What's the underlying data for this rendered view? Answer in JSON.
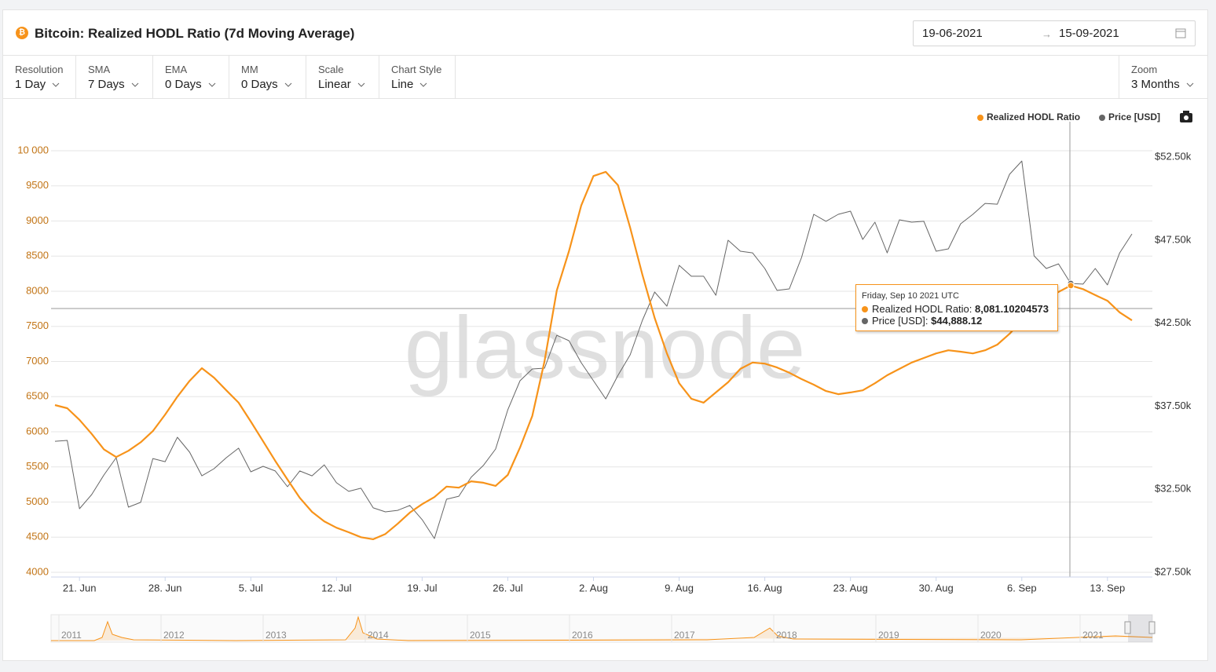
{
  "header": {
    "title": "Bitcoin: Realized HODL Ratio (7d Moving Average)",
    "date_from": "19-06-2021",
    "date_to": "15-09-2021"
  },
  "controls": [
    {
      "label": "Resolution",
      "value": "1 Day"
    },
    {
      "label": "SMA",
      "value": "7 Days"
    },
    {
      "label": "EMA",
      "value": "0 Days"
    },
    {
      "label": "MM",
      "value": "0 Days"
    },
    {
      "label": "Scale",
      "value": "Linear"
    },
    {
      "label": "Chart Style",
      "value": "Line"
    }
  ],
  "zoom": {
    "label": "Zoom",
    "value": "3 Months"
  },
  "tooltip": {
    "title": "Friday, Sep 10 2021 UTC",
    "items": [
      {
        "label": "Realized HODL Ratio:",
        "value": "8,081.10204573"
      },
      {
        "label": "Price [USD]:",
        "value": "$44,888.12"
      }
    ]
  },
  "navigator": {
    "labels": [
      "2011",
      "2012",
      "2013",
      "2014",
      "2015",
      "2016",
      "2017",
      "2018",
      "2019",
      "2020",
      "2021"
    ]
  },
  "chart_data": {
    "type": "line",
    "watermark": "glassnode",
    "grid": true,
    "categories": [
      null,
      null,
      "21. Jun",
      null,
      null,
      null,
      null,
      null,
      null,
      "28. Jun",
      null,
      null,
      null,
      null,
      null,
      null,
      "5. Jul",
      null,
      null,
      null,
      null,
      null,
      null,
      "12. Jul",
      null,
      null,
      null,
      null,
      null,
      null,
      "19. Jul",
      null,
      null,
      null,
      null,
      null,
      null,
      "26. Jul",
      null,
      null,
      null,
      null,
      null,
      null,
      "2. Aug",
      null,
      null,
      null,
      null,
      null,
      null,
      "9. Aug",
      null,
      null,
      null,
      null,
      null,
      null,
      "16. Aug",
      null,
      null,
      null,
      null,
      null,
      null,
      "23. Aug",
      null,
      null,
      null,
      null,
      null,
      null,
      "30. Aug",
      null,
      null,
      null,
      null,
      null,
      null,
      "6. Sep",
      null,
      null,
      null,
      null,
      null,
      null,
      "13. Sep",
      null,
      null
    ],
    "ylim": [
      3933,
      10447
    ],
    "yticks": [
      4000,
      4500,
      5000,
      5500,
      6000,
      6500,
      7000,
      7500,
      8000,
      8500,
      9000,
      9500,
      {
        "value": 10000,
        "label": "10 000"
      }
    ],
    "y2lim": [
      27216,
      54770
    ],
    "y2ticks": [
      {
        "value": 27500,
        "label": "$27.50k"
      },
      {
        "value": 32500,
        "label": "$32.50k"
      },
      {
        "value": 37500,
        "label": "$37.50k"
      },
      {
        "value": 42500,
        "label": "$42.50k"
      },
      {
        "value": 47500,
        "label": "$47.50k"
      },
      {
        "value": 52500,
        "label": "$52.50k"
      }
    ],
    "series": [
      {
        "name": "Realized HODL Ratio",
        "color": "#f7931a",
        "values": [
          6380,
          6335,
          6170,
          5970,
          5750,
          5640,
          5730,
          5850,
          6010,
          6245,
          6500,
          6725,
          6905,
          6770,
          6590,
          6415,
          6145,
          5865,
          5585,
          5320,
          5060,
          4860,
          4725,
          4635,
          4570,
          4500,
          4470,
          4545,
          4690,
          4850,
          4970,
          5070,
          5220,
          5205,
          5295,
          5275,
          5230,
          5385,
          5775,
          6225,
          7005,
          8010,
          8570,
          9220,
          9640,
          9700,
          9510,
          8905,
          8235,
          7620,
          7115,
          6690,
          6470,
          6415,
          6560,
          6705,
          6895,
          6985,
          6970,
          6915,
          6840,
          6750,
          6670,
          6580,
          6535,
          6560,
          6590,
          6690,
          6805,
          6895,
          6985,
          7050,
          7115,
          7160,
          7140,
          7115,
          7160,
          7240,
          7395,
          7585,
          7755,
          7900,
          7990,
          8081.10204573,
          8030,
          7945,
          7865,
          7700,
          7585
        ]
      },
      {
        "name": "Price [USD]",
        "color": "#666666",
        "axis": "y2",
        "values": [
          35390,
          35440,
          31330,
          32180,
          33360,
          34400,
          31420,
          31710,
          34350,
          34160,
          35630,
          34730,
          33310,
          33740,
          34400,
          34970,
          33550,
          33880,
          33600,
          32650,
          33600,
          33310,
          33970,
          32890,
          32370,
          32560,
          31380,
          31140,
          31230,
          31520,
          30670,
          29530,
          31900,
          32080,
          33220,
          33930,
          34920,
          37280,
          39030,
          39740,
          39790,
          41770,
          41440,
          40120,
          39030,
          37940,
          39360,
          40590,
          42670,
          44370,
          43520,
          45980,
          45320,
          45320,
          44180,
          47490,
          46830,
          46730,
          45790,
          44470,
          44560,
          46450,
          49050,
          48630,
          49050,
          49240,
          47540,
          48580,
          46730,
          48720,
          48580,
          48630,
          46830,
          46970,
          48480,
          49050,
          49710,
          49660,
          51460,
          52260,
          46550,
          45790,
          46070,
          44888.12,
          44850,
          45790,
          44800,
          46730,
          47870
        ]
      }
    ]
  }
}
